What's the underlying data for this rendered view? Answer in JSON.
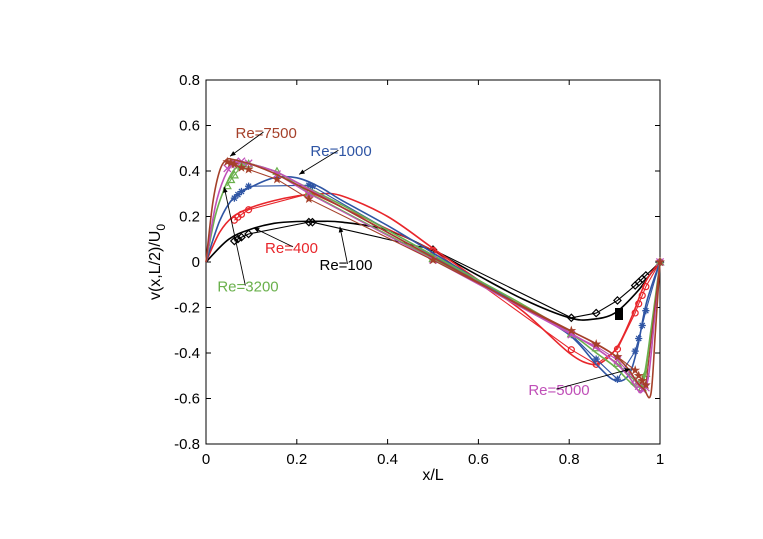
{
  "chart_data": {
    "type": "line",
    "title": "",
    "xlabel": "x/L",
    "ylabel_main": "v(x,L/2)/U",
    "ylabel_sub": "0",
    "xlim": [
      0,
      1
    ],
    "ylim": [
      -0.8,
      0.8
    ],
    "xticks": [
      0,
      0.2,
      0.4,
      0.6,
      0.8,
      1
    ],
    "yticks": [
      -0.8,
      -0.6,
      -0.4,
      -0.2,
      0,
      0.2,
      0.4,
      0.6,
      0.8
    ],
    "xtick_labels": [
      "0",
      "0.2",
      "0.4",
      "0.6",
      "0.8",
      "1"
    ],
    "ytick_labels": [
      "-0.8",
      "-0.6",
      "-0.4",
      "-0.2",
      "0",
      "0.2",
      "0.4",
      "0.6",
      "0.8"
    ],
    "grid": false,
    "series": [
      {
        "name": "Re=100",
        "color": "#000000",
        "marker": "diamond",
        "x": [
          0,
          0.05,
          0.1,
          0.15,
          0.2,
          0.25,
          0.3,
          0.4,
          0.5,
          0.6,
          0.7,
          0.8,
          0.85,
          0.9,
          0.95,
          0.98,
          1
        ],
        "y": [
          0,
          0.1,
          0.145,
          0.17,
          0.178,
          0.179,
          0.175,
          0.14,
          0.05,
          -0.06,
          -0.165,
          -0.245,
          -0.252,
          -0.225,
          -0.13,
          -0.05,
          0
        ],
        "markers_x": [
          0.0625,
          0.0703,
          0.0781,
          0.0938,
          0.2266,
          0.2344,
          0.5,
          0.8047,
          0.8594,
          0.9063,
          0.9453,
          0.9531,
          0.9609,
          0.9688,
          1
        ],
        "markers_y": [
          0.0923,
          0.1009,
          0.1089,
          0.1232,
          0.1753,
          0.1751,
          0.0545,
          -0.2453,
          -0.2245,
          -0.1691,
          -0.1031,
          -0.0886,
          -0.0739,
          -0.0591,
          0
        ]
      },
      {
        "name": "Re=400",
        "color": "#e8262b",
        "marker": "circle",
        "x": [
          0,
          0.03,
          0.06,
          0.1,
          0.15,
          0.2,
          0.25,
          0.3,
          0.4,
          0.5,
          0.6,
          0.7,
          0.8,
          0.85,
          0.88,
          0.91,
          0.94,
          0.97,
          1
        ],
        "y": [
          0,
          0.13,
          0.2,
          0.24,
          0.27,
          0.29,
          0.3,
          0.29,
          0.2,
          0.06,
          -0.08,
          -0.22,
          -0.4,
          -0.45,
          -0.43,
          -0.36,
          -0.23,
          -0.08,
          0
        ],
        "markers_x": [
          0.0625,
          0.0703,
          0.0781,
          0.0938,
          0.2266,
          0.2344,
          0.5,
          0.8047,
          0.8594,
          0.9063,
          0.9453,
          0.9531,
          0.9609,
          0.9688,
          1
        ],
        "markers_y": [
          0.1836,
          0.1971,
          0.2092,
          0.2297,
          0.3003,
          0.3017,
          0.0519,
          -0.3856,
          -0.4499,
          -0.3829,
          -0.2239,
          -0.1836,
          -0.1469,
          -0.1084,
          0
        ]
      },
      {
        "name": "Re=1000",
        "color": "#2f55a4",
        "marker": "asterisk",
        "x": [
          0,
          0.03,
          0.06,
          0.1,
          0.15,
          0.2,
          0.25,
          0.3,
          0.4,
          0.5,
          0.6,
          0.7,
          0.8,
          0.86,
          0.9,
          0.93,
          0.95,
          0.97,
          1
        ],
        "y": [
          0,
          0.18,
          0.28,
          0.33,
          0.37,
          0.37,
          0.33,
          0.27,
          0.16,
          0.04,
          -0.08,
          -0.2,
          -0.32,
          -0.45,
          -0.52,
          -0.5,
          -0.38,
          -0.18,
          0
        ],
        "markers_x": [
          0.0625,
          0.0703,
          0.0781,
          0.0938,
          0.2266,
          0.2344,
          0.5,
          0.8047,
          0.8594,
          0.9063,
          0.9453,
          0.9531,
          0.9609,
          0.9688,
          1
        ],
        "markers_y": [
          0.2807,
          0.2962,
          0.3099,
          0.333,
          0.3372,
          0.333,
          0.0258,
          -0.3196,
          -0.4267,
          -0.5155,
          -0.3919,
          -0.3361,
          -0.2792,
          -0.214,
          0
        ]
      },
      {
        "name": "Re=3200",
        "color": "#6ab04c",
        "marker": "triangle",
        "x": [
          0,
          0.02,
          0.04,
          0.06,
          0.08,
          0.1,
          0.15,
          0.2,
          0.3,
          0.4,
          0.5,
          0.6,
          0.7,
          0.8,
          0.86,
          0.9,
          0.93,
          0.95,
          0.965,
          0.98,
          1
        ],
        "y": [
          0,
          0.2,
          0.32,
          0.4,
          0.43,
          0.43,
          0.4,
          0.35,
          0.25,
          0.14,
          0.03,
          -0.08,
          -0.19,
          -0.31,
          -0.4,
          -0.46,
          -0.52,
          -0.55,
          -0.5,
          -0.3,
          0
        ],
        "markers_x": [
          0.0469,
          0.0547,
          0.0625,
          0.0781,
          0.0938,
          0.1563,
          0.2266,
          0.5,
          0.8047,
          0.8594,
          0.9063,
          0.9453,
          0.9531,
          0.9609,
          0.9688,
          1
        ],
        "markers_y": [
          0.3349,
          0.362,
          0.3824,
          0.4212,
          0.431,
          0.3981,
          0.3045,
          0.0147,
          -0.3153,
          -0.3773,
          -0.4456,
          -0.5238,
          -0.5375,
          -0.5524,
          -0.4903,
          0
        ]
      },
      {
        "name": "Re=5000",
        "color": "#c050b8",
        "marker": "x",
        "x": [
          0,
          0.02,
          0.04,
          0.06,
          0.08,
          0.1,
          0.15,
          0.2,
          0.3,
          0.4,
          0.5,
          0.6,
          0.7,
          0.8,
          0.86,
          0.9,
          0.93,
          0.95,
          0.96,
          0.975,
          0.99,
          1
        ],
        "y": [
          0,
          0.24,
          0.37,
          0.43,
          0.44,
          0.43,
          0.4,
          0.35,
          0.24,
          0.13,
          0.02,
          -0.09,
          -0.2,
          -0.31,
          -0.38,
          -0.44,
          -0.5,
          -0.56,
          -0.57,
          -0.5,
          -0.2,
          0
        ],
        "markers_x": [
          0.0469,
          0.0547,
          0.0625,
          0.0781,
          0.0938,
          0.1563,
          0.2266,
          0.5,
          0.8047,
          0.8594,
          0.9063,
          0.9453,
          0.9531,
          0.9609,
          0.9688,
          1
        ],
        "markers_y": [
          0.4117,
          0.4278,
          0.4381,
          0.4427,
          0.4338,
          0.3862,
          0.3005,
          0.0095,
          -0.3192,
          -0.3702,
          -0.4307,
          -0.5164,
          -0.5451,
          -0.5596,
          -0.5522,
          0
        ]
      },
      {
        "name": "Re=7500",
        "color": "#a5402a",
        "marker": "star",
        "x": [
          0,
          0.015,
          0.03,
          0.045,
          0.06,
          0.08,
          0.1,
          0.15,
          0.2,
          0.3,
          0.4,
          0.5,
          0.6,
          0.7,
          0.8,
          0.86,
          0.9,
          0.93,
          0.95,
          0.965,
          0.98,
          0.99,
          1
        ],
        "y": [
          0,
          0.26,
          0.4,
          0.45,
          0.45,
          0.44,
          0.43,
          0.39,
          0.34,
          0.24,
          0.13,
          0.02,
          -0.09,
          -0.2,
          -0.3,
          -0.36,
          -0.41,
          -0.47,
          -0.53,
          -0.56,
          -0.58,
          -0.3,
          0
        ],
        "markers_x": [
          0.0469,
          0.0547,
          0.0625,
          0.0781,
          0.0938,
          0.1563,
          0.2266,
          0.5,
          0.8047,
          0.8594,
          0.9063,
          0.9453,
          0.9531,
          0.9609,
          0.9688,
          1
        ],
        "markers_y": [
          0.4403,
          0.4356,
          0.429,
          0.4144,
          0.4069,
          0.3634,
          0.2772,
          0.0082,
          -0.3019,
          -0.3614,
          -0.4161,
          -0.476,
          -0.4997,
          -0.5217,
          -0.5405,
          0
        ]
      }
    ],
    "annotations": [
      {
        "text": "Re=7500",
        "series": "Re=7500",
        "tx": 0.065,
        "ty": 0.545,
        "ax": 0.053,
        "ay": 0.465
      },
      {
        "text": "Re=1000",
        "series": "Re=1000",
        "tx": 0.23,
        "ty": 0.465,
        "ax": 0.205,
        "ay": 0.385
      },
      {
        "text": "Re=400",
        "series": "Re=400",
        "tx": 0.13,
        "ty": 0.04,
        "ax": 0.105,
        "ay": 0.15
      },
      {
        "text": "Re=100",
        "series": "Re=100",
        "tx": 0.25,
        "ty": -0.035,
        "ax": 0.295,
        "ay": 0.155
      },
      {
        "text": "Re=3200",
        "series": "Re=3200",
        "tx": 0.025,
        "ty": -0.13,
        "ax": 0.04,
        "ay": 0.33
      },
      {
        "text": "Re=5000",
        "series": "Re=5000",
        "tx": 0.71,
        "ty": -0.585,
        "ax": 0.935,
        "ay": -0.47
      }
    ]
  }
}
